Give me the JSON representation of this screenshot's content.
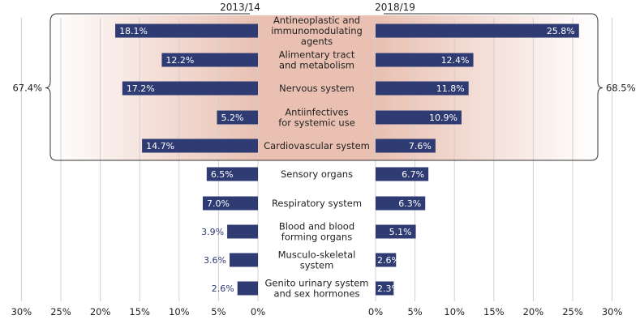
{
  "chart_data": {
    "type": "bar",
    "orientation": "horizontal-butterfly",
    "title": "",
    "series": [
      {
        "name": "2013/14",
        "side": "left",
        "values": [
          18.1,
          12.2,
          17.2,
          5.2,
          14.7,
          6.5,
          7.0,
          3.9,
          3.6,
          2.6
        ],
        "labels": [
          "18.1%",
          "12.2%",
          "17.2%",
          "5.2%",
          "14.7%",
          "6.5%",
          "7.0%",
          "3.9%",
          "3.6%",
          "2.6%"
        ]
      },
      {
        "name": "2018/19",
        "side": "right",
        "values": [
          25.8,
          12.4,
          11.8,
          10.9,
          7.6,
          6.7,
          6.3,
          5.1,
          2.6,
          2.3
        ],
        "labels": [
          "25.8%",
          "12.4%",
          "11.8%",
          "10.9%",
          "7.6%",
          "6.7%",
          "6.3%",
          "5.1%",
          "2.6%",
          "2.3%"
        ]
      }
    ],
    "categories": [
      [
        "Antineoplastic and",
        "immunomodulating",
        "agents"
      ],
      [
        "Alimentary tract",
        "and metabolism"
      ],
      [
        "Nervous system"
      ],
      [
        "Antiinfectives",
        "for systemic use"
      ],
      [
        "Cardiovascular system"
      ],
      [
        "Sensory organs"
      ],
      [
        "Respiratory system"
      ],
      [
        "Blood and blood",
        "forming organs"
      ],
      [
        "Musculo-skeletal",
        "system"
      ],
      [
        "Genito urinary system",
        "and sex hormones"
      ]
    ],
    "xlim": [
      0,
      30
    ],
    "x_ticks": [
      "30%",
      "25%",
      "20%",
      "15%",
      "10%",
      "5%",
      "0%"
    ],
    "x_ticks_right": [
      "0%",
      "5%",
      "10%",
      "15%",
      "20%",
      "25%",
      "30%"
    ],
    "grid": true,
    "bar_color": "#2f3b73",
    "highlight_band_color": "#e8b8a8",
    "bracket": {
      "rows": 5,
      "left_total": "67.4%",
      "right_total": "68.5%"
    }
  }
}
